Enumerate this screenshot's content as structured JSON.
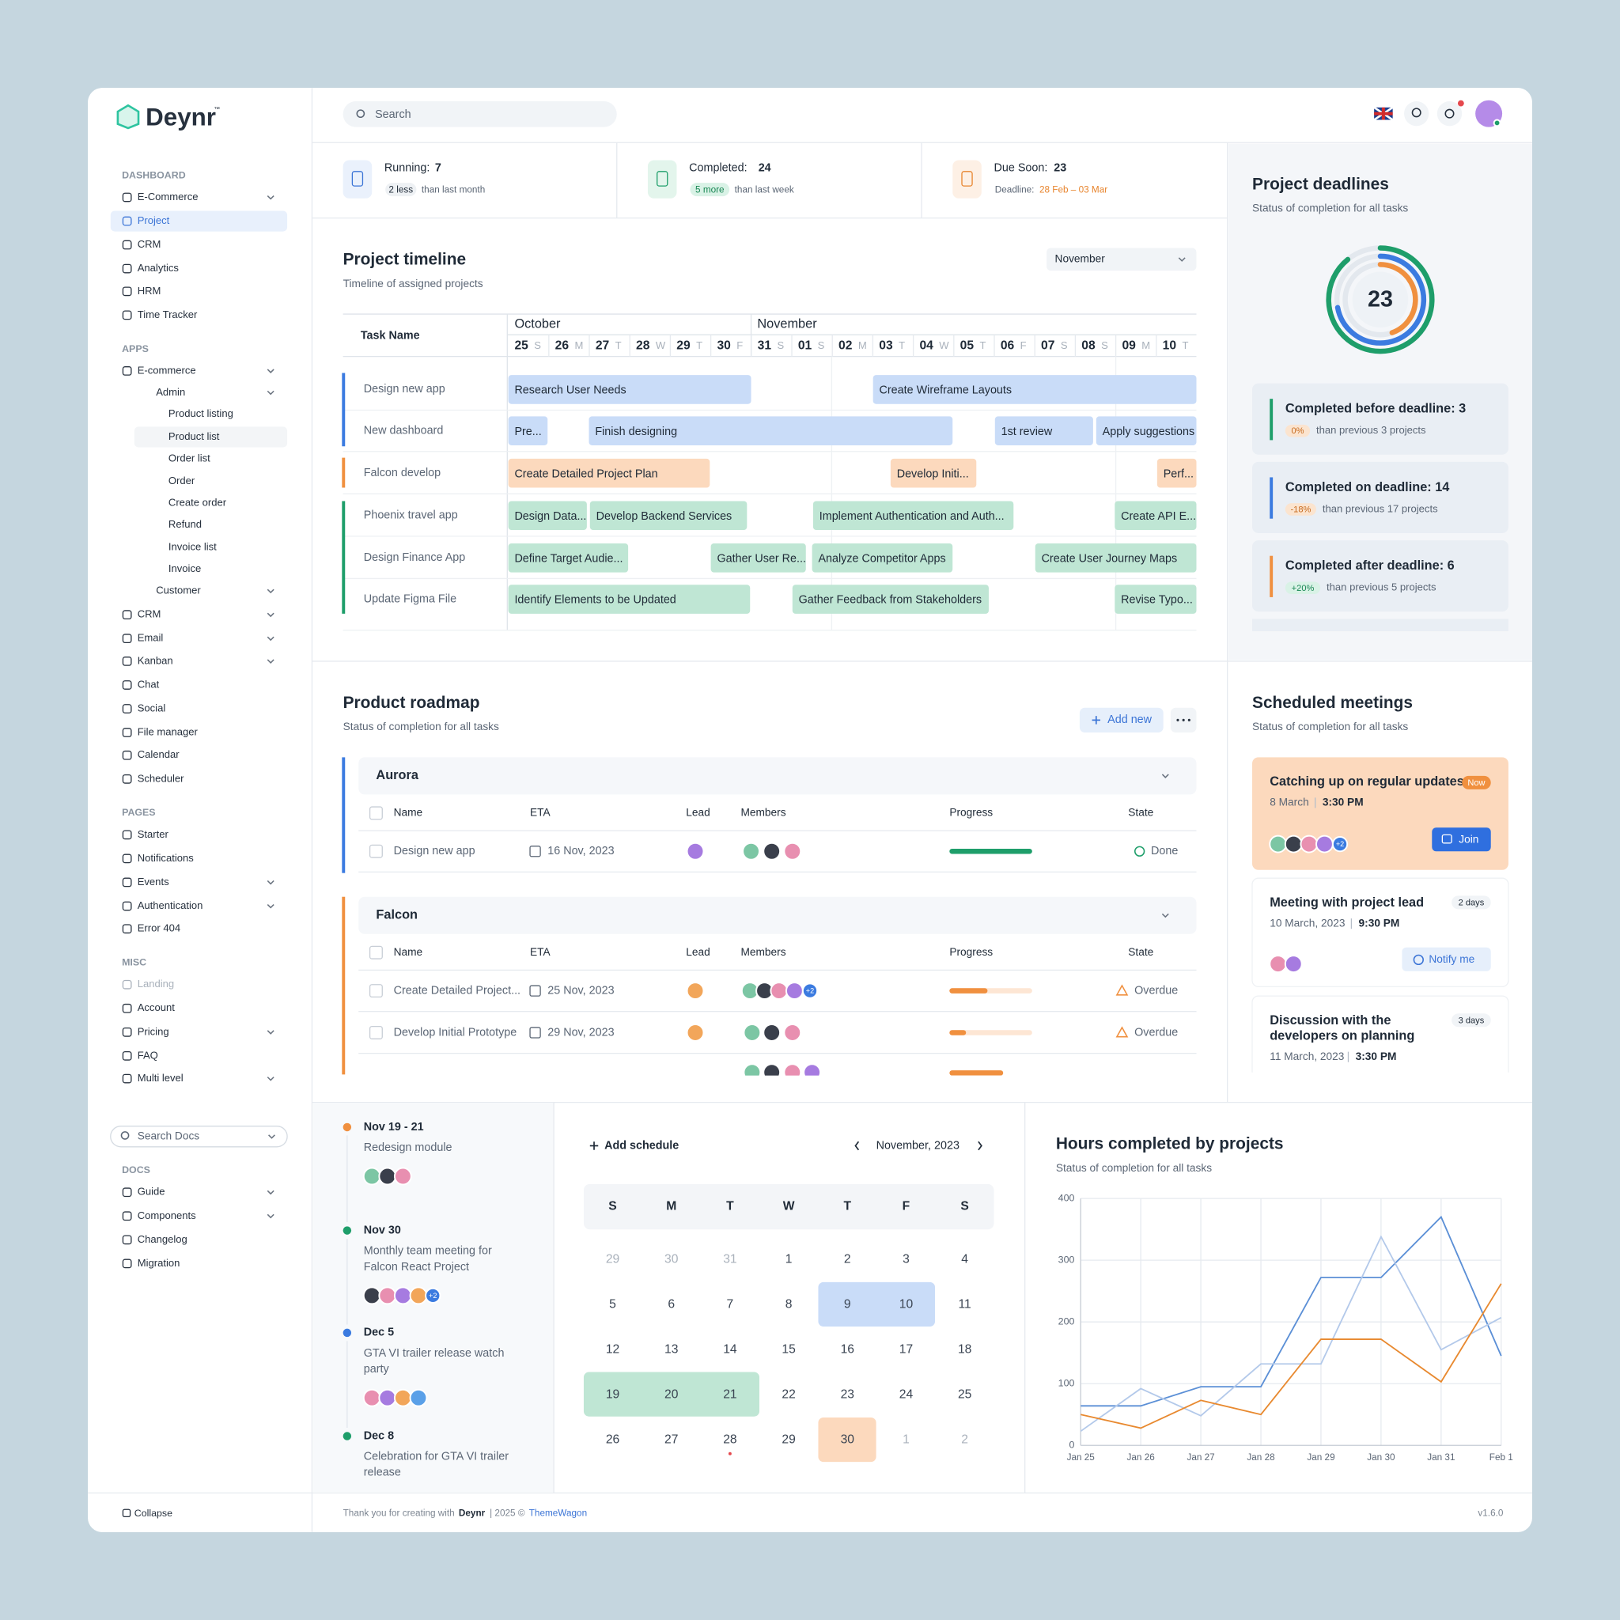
{
  "brand": {
    "name": "Deynr",
    "tm": "™"
  },
  "header": {
    "search": "Search"
  },
  "sidebar": {
    "sections": [
      {
        "title": "DASHBOARD",
        "items": [
          "E-Commerce",
          "Project",
          "CRM",
          "Analytics",
          "HRM",
          "Time Tracker"
        ]
      },
      {
        "title": "APPS",
        "items": [
          "E-commerce",
          "Admin",
          "Product listing",
          "Product list",
          "Order list",
          "Order",
          "Create order",
          "Refund",
          "Invoice list",
          "Invoice",
          "Customer",
          "CRM",
          "Email",
          "Kanban",
          "Chat",
          "Social",
          "File manager",
          "Calendar",
          "Scheduler"
        ]
      },
      {
        "title": "PAGES",
        "items": [
          "Starter",
          "Notifications",
          "Events",
          "Authentication",
          "Error 404"
        ]
      },
      {
        "title": "MISC",
        "items": [
          "Landing",
          "Account",
          "Pricing",
          "FAQ",
          "Multi level"
        ]
      },
      {
        "title": "DOCS",
        "items": [
          "Guide",
          "Components",
          "Changelog",
          "Migration"
        ]
      }
    ],
    "search_docs": "Search Docs",
    "collapse": "Collapse"
  },
  "stats": [
    {
      "label": "Running:",
      "value": "7",
      "badge": "2 less",
      "note": "than last month"
    },
    {
      "label": "Completed:",
      "value": "24",
      "badge": "5 more",
      "note": "than last week"
    },
    {
      "label": "Due Soon:",
      "value": "23",
      "note_label": "Deadline:",
      "note": "28 Feb – 03 Mar"
    }
  ],
  "timeline": {
    "title": "Project timeline",
    "subtitle": "Timeline of assigned projects",
    "filter": "November",
    "task_header": "Task Name",
    "months": [
      "October",
      "November"
    ],
    "days": [
      [
        "25",
        "S"
      ],
      [
        "26",
        "M"
      ],
      [
        "27",
        "T"
      ],
      [
        "28",
        "W"
      ],
      [
        "29",
        "T"
      ],
      [
        "30",
        "F"
      ],
      [
        "31",
        "S"
      ],
      [
        "01",
        "S"
      ],
      [
        "02",
        "M"
      ],
      [
        "03",
        "T"
      ],
      [
        "04",
        "W"
      ],
      [
        "05",
        "T"
      ],
      [
        "06",
        "F"
      ],
      [
        "07",
        "S"
      ],
      [
        "08",
        "S"
      ],
      [
        "09",
        "M"
      ],
      [
        "10",
        "T"
      ]
    ],
    "tasks": [
      {
        "name": "Design new app",
        "bars": [
          "Research User Needs",
          "Create Wireframe Layouts"
        ]
      },
      {
        "name": "New dashboard",
        "bars": [
          "Pre...",
          "Finish designing",
          "1st review",
          "Apply suggestions"
        ]
      },
      {
        "name": "Falcon develop",
        "bars": [
          "Create Detailed Project Plan",
          "Develop Initi...",
          "Perf..."
        ]
      },
      {
        "name": "Phoenix travel app",
        "bars": [
          "Design Data...",
          "Develop Backend Services",
          "Implement Authentication and Auth...",
          "Create API E..."
        ]
      },
      {
        "name": "Design Finance App",
        "bars": [
          "Define Target Audie...",
          "Gather User Re...",
          "Analyze Competitor Apps",
          "Create User Journey Maps"
        ]
      },
      {
        "name": "Update Figma File",
        "bars": [
          "Identify Elements to be Updated",
          "Gather Feedback from Stakeholders",
          "Revise Typo..."
        ]
      }
    ]
  },
  "deadlines": {
    "title": "Project deadlines",
    "subtitle": "Status of completion for all tasks",
    "total": "23",
    "items": [
      {
        "label": "Completed before deadline: 3",
        "change": "0%",
        "note": "than previous 3 projects"
      },
      {
        "label": "Completed on deadline: 14",
        "change": "-18%",
        "note": "than previous 17 projects"
      },
      {
        "label": "Completed after deadline: 6",
        "change": "+20%",
        "note": "than previous 5 projects"
      }
    ]
  },
  "roadmap": {
    "title": "Product roadmap",
    "subtitle": "Status of completion for all tasks",
    "add": "Add new",
    "columns": [
      "Name",
      "ETA",
      "Lead",
      "Members",
      "Progress",
      "State"
    ],
    "groups": [
      {
        "name": "Aurora",
        "rows": [
          {
            "name": "Design new app",
            "eta": "16 Nov, 2023",
            "progress": 100,
            "state": "Done"
          }
        ]
      },
      {
        "name": "Falcon",
        "rows": [
          {
            "name": "Create Detailed Project...",
            "eta": "25 Nov, 2023",
            "members_more": "+2",
            "progress": 46,
            "state": "Overdue"
          },
          {
            "name": "Develop Initial Prototype",
            "eta": "29 Nov, 2023",
            "progress": 20,
            "state": "Overdue"
          }
        ]
      }
    ]
  },
  "meetings": {
    "title": "Scheduled meetings",
    "subtitle": "Status of completion for all tasks",
    "items": [
      {
        "title": [
          "Catching up on regular updates"
        ],
        "tag": "Now",
        "date": "8 March",
        "time": "3:30 PM",
        "more": "+2",
        "action": "Join"
      },
      {
        "title": [
          "Meeting with project lead"
        ],
        "tag": "2 days",
        "date": "10 March, 2023",
        "time": "9:30 PM",
        "action": "Notify me"
      },
      {
        "title": [
          "Discussion with the",
          "developers on planning"
        ],
        "tag": "3 days",
        "date": "11 March, 2023",
        "time": "3:30 PM"
      }
    ]
  },
  "events": [
    {
      "date": "Nov 19 - 21",
      "text": [
        "Redesign module"
      ]
    },
    {
      "date": "Nov 30",
      "text": [
        "Monthly team meeting for",
        "Falcon React Project"
      ],
      "more": "+2"
    },
    {
      "date": "Dec 5",
      "text": [
        "GTA VI trailer release watch",
        "party"
      ]
    },
    {
      "date": "Dec 8",
      "text": [
        "Celebration for GTA VI trailer",
        "release"
      ]
    }
  ],
  "calendar": {
    "add": "Add schedule",
    "month": "November, 2023",
    "weekdays": [
      "S",
      "M",
      "T",
      "W",
      "T",
      "F",
      "S"
    ],
    "weeks": [
      [
        "29",
        "30",
        "31",
        "1",
        "2",
        "3",
        "4"
      ],
      [
        "5",
        "6",
        "7",
        "8",
        "9",
        "10",
        "11"
      ],
      [
        "12",
        "13",
        "14",
        "15",
        "16",
        "17",
        "18"
      ],
      [
        "19",
        "20",
        "21",
        "22",
        "23",
        "24",
        "25"
      ],
      [
        "26",
        "27",
        "28",
        "29",
        "30",
        "1",
        "2"
      ]
    ]
  },
  "chart_data": {
    "type": "line",
    "title": "Hours completed by projects",
    "subtitle": "Status of completion for all tasks",
    "categories": [
      "Jan 25",
      "Jan 26",
      "Jan 27",
      "Jan 28",
      "Jan 29",
      "Jan 30",
      "Jan 31",
      "Feb 1"
    ],
    "series": [
      {
        "color": "#5b8fd6",
        "values": [
          64,
          64,
          95,
          95,
          272,
          272,
          370,
          145
        ]
      },
      {
        "color": "#b3c9ea",
        "values": [
          23,
          92,
          48,
          132,
          132,
          338,
          155,
          207
        ]
      },
      {
        "color": "#e8892f",
        "values": [
          50,
          28,
          73,
          50,
          172,
          172,
          103,
          262
        ]
      }
    ],
    "ylim": [
      0,
      400
    ],
    "yticks": [
      0,
      100,
      200,
      300,
      400
    ],
    "grid": true
  },
  "footer": {
    "thanks": "Thank you for creating with",
    "brand": "Deynr",
    "year": "| 2025 ©",
    "link": "ThemeWagon",
    "version": "v1.6.0"
  }
}
